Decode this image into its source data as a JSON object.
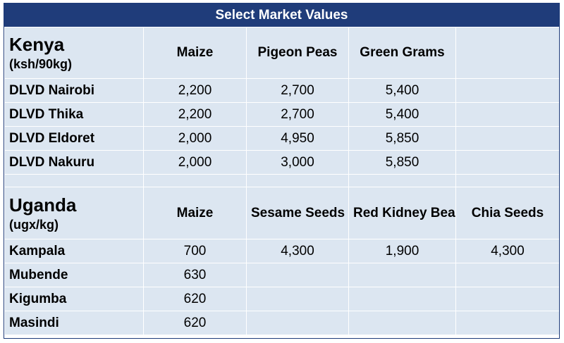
{
  "title": "Select Market Values",
  "kenya": {
    "country": "Kenya",
    "unit": "(ksh/90kg)",
    "columns": [
      "Maize",
      "Pigeon Peas",
      "Green Grams",
      ""
    ],
    "rows": [
      {
        "market": "DLVD Nairobi",
        "values": [
          "2,200",
          "2,700",
          "5,400",
          ""
        ]
      },
      {
        "market": "DLVD Thika",
        "values": [
          "2,200",
          "2,700",
          "5,400",
          ""
        ]
      },
      {
        "market": "DLVD Eldoret",
        "values": [
          "2,000",
          "4,950",
          "5,850",
          ""
        ]
      },
      {
        "market": "DLVD Nakuru",
        "values": [
          "2,000",
          "3,000",
          "5,850",
          ""
        ]
      }
    ]
  },
  "uganda": {
    "country": "Uganda",
    "unit": "(ugx/kg)",
    "columns": [
      "Maize",
      "Sesame Seeds",
      "Red Kidney Beans",
      "Chia Seeds"
    ],
    "rows": [
      {
        "market": "Kampala",
        "values": [
          "700",
          "4,300",
          "1,900",
          "4,300"
        ]
      },
      {
        "market": "Mubende",
        "values": [
          "630",
          "",
          "",
          ""
        ]
      },
      {
        "market": "Kigumba",
        "values": [
          "620",
          "",
          "",
          ""
        ]
      },
      {
        "market": "Masindi",
        "values": [
          "620",
          "",
          "",
          ""
        ]
      }
    ]
  }
}
